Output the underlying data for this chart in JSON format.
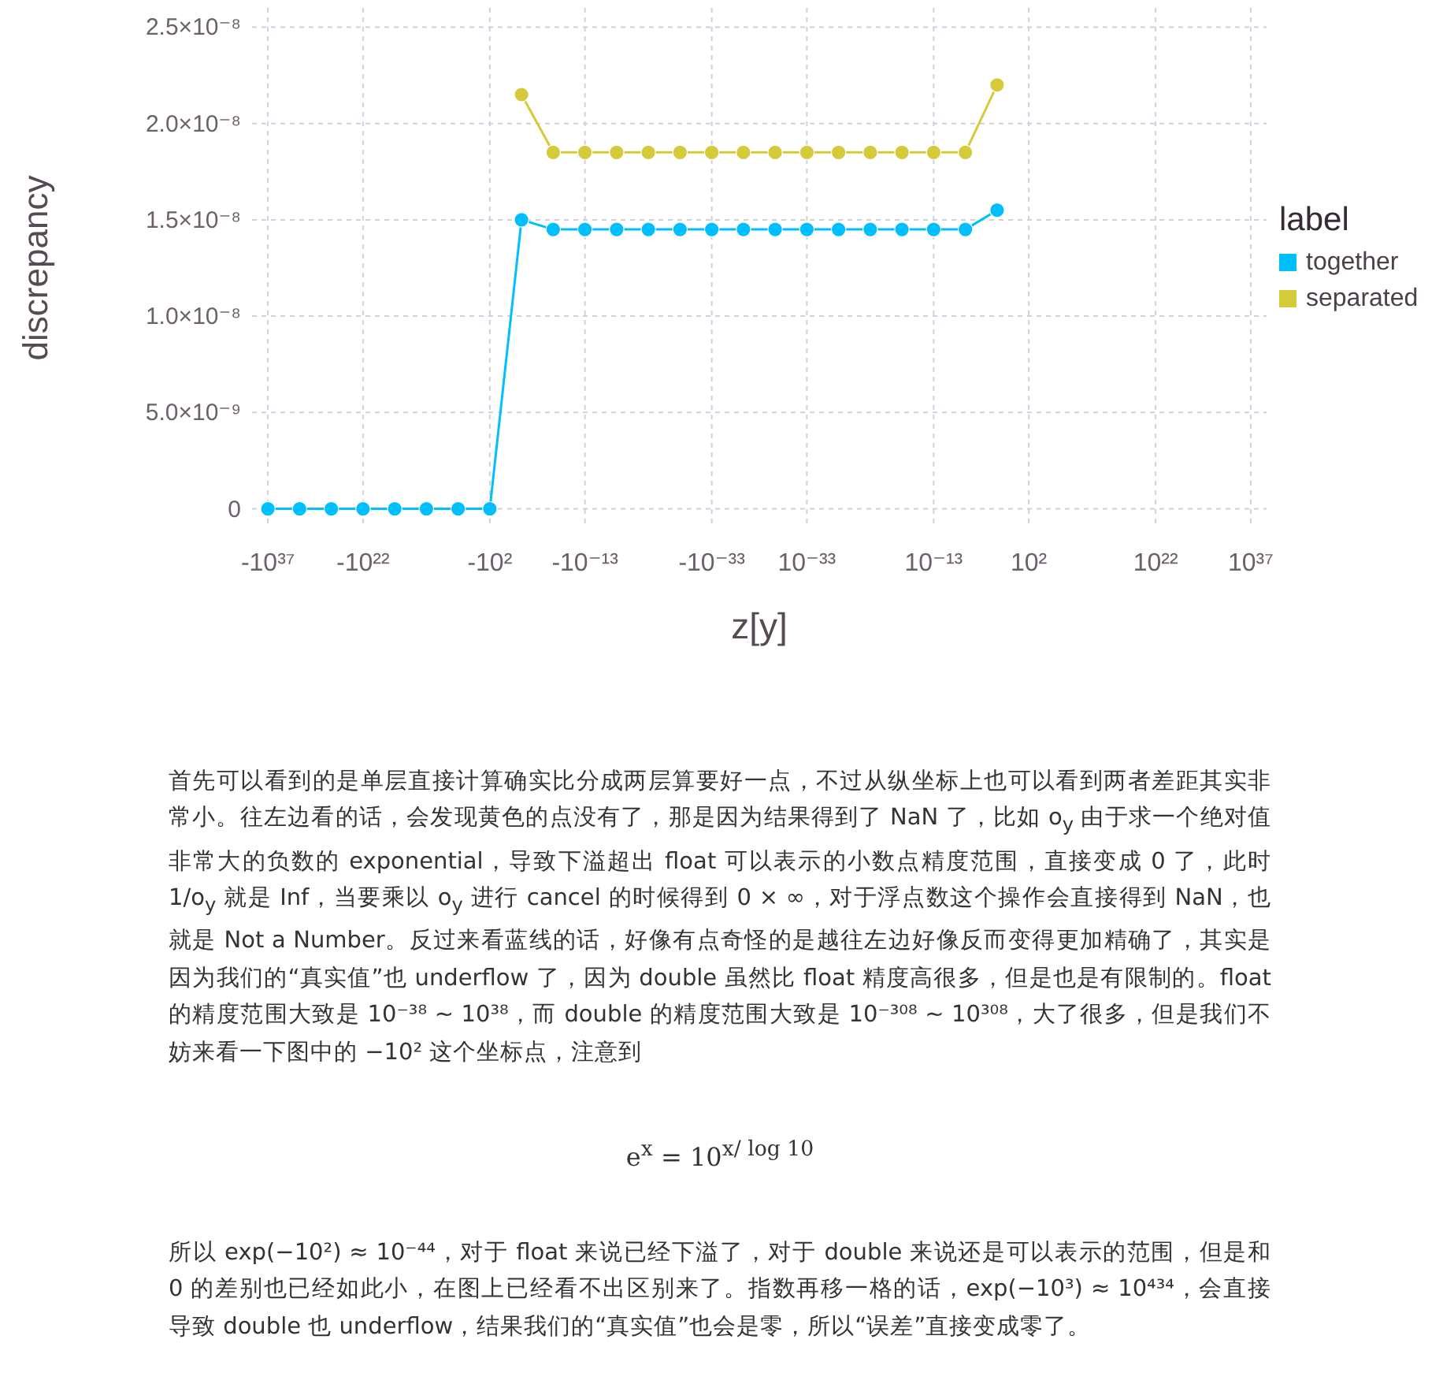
{
  "chart_data": {
    "type": "line",
    "xlabel": "z[y]",
    "ylabel": "discrepancy",
    "legend_title": "label",
    "categories": [
      "-10³⁷",
      null,
      null,
      "-10²²",
      null,
      null,
      null,
      "-10²",
      null,
      null,
      "-10⁻¹³",
      null,
      null,
      null,
      "-10⁻³³",
      null,
      null,
      "10⁻³³",
      null,
      null,
      null,
      "10⁻¹³",
      null,
      null,
      "10²",
      null,
      null,
      null,
      "10²²",
      null,
      null,
      "10³⁷"
    ],
    "series": [
      {
        "name": "together",
        "color": "#00bfff",
        "values": [
          0,
          0,
          0,
          0,
          0,
          0,
          0,
          0,
          1.5e-08,
          1.45e-08,
          1.45e-08,
          1.45e-08,
          1.45e-08,
          1.45e-08,
          1.45e-08,
          1.45e-08,
          1.45e-08,
          1.45e-08,
          1.45e-08,
          1.45e-08,
          1.45e-08,
          1.45e-08,
          1.45e-08,
          1.55e-08,
          null,
          null,
          null,
          null,
          null,
          null,
          null,
          null
        ]
      },
      {
        "name": "separated",
        "color": "#d4ca3a",
        "values": [
          null,
          null,
          null,
          null,
          null,
          null,
          null,
          null,
          2.15e-08,
          1.85e-08,
          1.85e-08,
          1.85e-08,
          1.85e-08,
          1.85e-08,
          1.85e-08,
          1.85e-08,
          1.85e-08,
          1.85e-08,
          1.85e-08,
          1.85e-08,
          1.85e-08,
          1.85e-08,
          1.85e-08,
          2.2e-08,
          null,
          null,
          null,
          null,
          null,
          null,
          null,
          null
        ]
      }
    ],
    "ylim": [
      -1e-09,
      2.6e-08
    ],
    "yticks": [
      0,
      {
        "value": 5e-09,
        "label": "5.0×10⁻⁹"
      },
      {
        "value": 1e-08,
        "label": "1.0×10⁻⁸"
      },
      {
        "value": 1.5e-08,
        "label": "1.5×10⁻⁸"
      },
      {
        "value": 2e-08,
        "label": "2.0×10⁻⁸"
      },
      {
        "value": 2.5e-08,
        "label": "2.5×10⁻⁸"
      }
    ],
    "grid": true,
    "legend": "right",
    "marker": "circle",
    "line_style": "solid",
    "annotations": [
      "首先可以看到的是单层直接计算确实比分成两层算要好一点，不过从纵坐标上也可以看到两者差距其实非常小。往左边看的话，会发现黄色的点没有了，那是因为结果得到了 NaN 了，比如 o$_{y}$ 由于求一个绝对值非常大的负数的 exponential，导致下溢超出 float 可以表示的小数点精度范围，直接变成 0 了，此时 1/o$_{y}$ 就是 Inf，当要乘以 o$_{y}$ 进行 cancel 的时候得到 0 × ∞，对于浮点数这个操作会直接得到 NaN，也就是 Not a Number。反过来看蓝线的话，好像有点奇怪的是越往左边好像反而变得更加精确了，其实是因为我们的“真实值”也 underflow 了，因为 double 虽然比 float 精度高很多，但是也是有限制的。float 的精度范围大致是 10⁻³⁸ ∼ 10³⁸，而 double 的精度范围大致是 10⁻³⁰⁸ ∼ 10³⁰⁸，大了很多，但是我们不妨来看一下图中的 −10² 这个坐标点，注意到",
      "e$^{x}$ = 10$^{x/ log 10}$",
      "所以 exp(−10²) ≈ 10⁻⁴⁴，对于 float 来说已经下溢了，对于 double 来说还是可以表示的范围，但是和 0 的差别也已经如此小，在图上已经看不出区别来了。指数再移一格的话，exp(−10³) ≈ 10⁴³⁴，会直接导致 double 也 underflow，结果我们的“真实值”也会是零，所以“误差”直接变成零了。"
    ]
  }
}
